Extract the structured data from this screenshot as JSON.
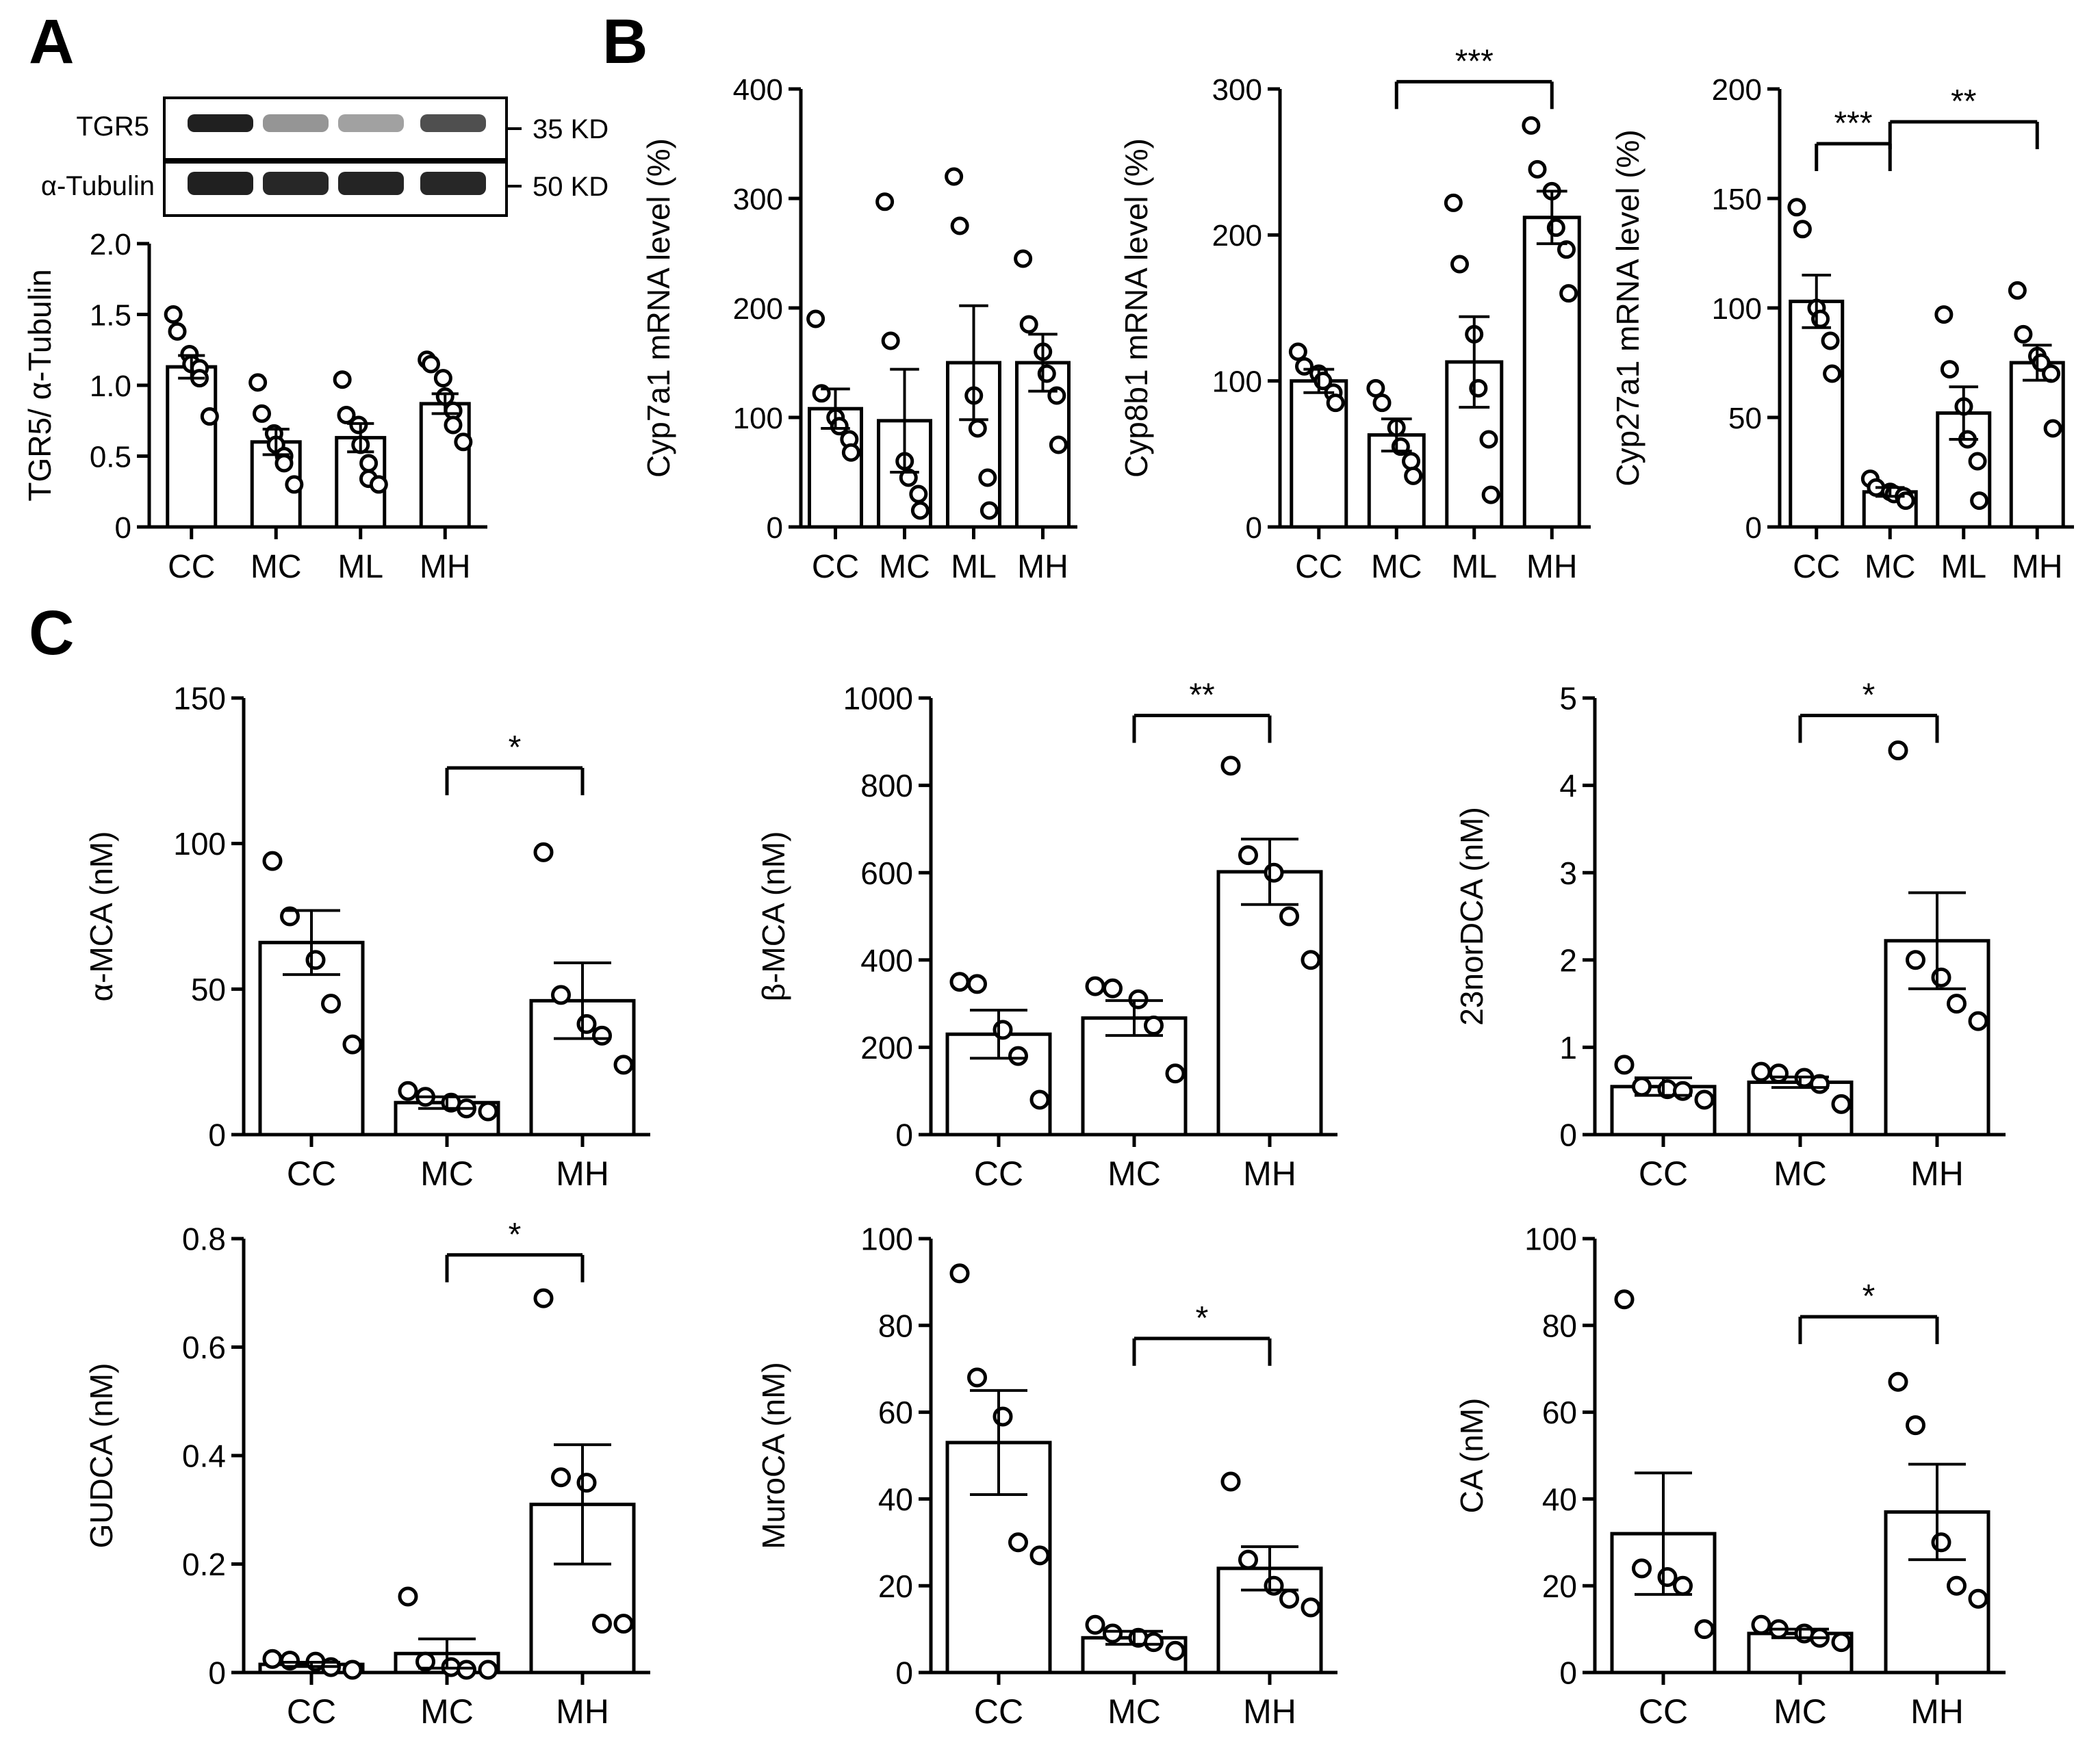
{
  "panel_labels": {
    "a": "A",
    "b": "B",
    "c": "C"
  },
  "western_blot": {
    "rows": [
      {
        "name": "TGR5",
        "size": "35 KD",
        "intensities": [
          0.95,
          0.45,
          0.4,
          0.75
        ]
      },
      {
        "name": "α-Tubulin",
        "size": "50 KD",
        "intensities": [
          0.95,
          0.92,
          0.93,
          0.92
        ]
      }
    ]
  },
  "chart_data": [
    {
      "id": "tgr5",
      "type": "bar",
      "ylabel": "TGR5/ α-Tubulin",
      "ylim": [
        0,
        2.0
      ],
      "yticks": [
        "0",
        "0.5",
        "1.0",
        "1.5",
        "2.0"
      ],
      "categories": [
        "CC",
        "MC",
        "ML",
        "MH"
      ],
      "values": [
        1.13,
        0.6,
        0.63,
        0.87
      ],
      "sem": [
        0.08,
        0.09,
        0.1,
        0.07
      ],
      "points": [
        [
          1.5,
          1.38,
          1.22,
          1.15,
          1.12,
          1.05,
          0.78
        ],
        [
          1.02,
          0.8,
          0.66,
          0.58,
          0.5,
          0.45,
          0.3
        ],
        [
          1.04,
          0.79,
          0.72,
          0.58,
          0.45,
          0.34,
          0.3
        ],
        [
          1.18,
          1.15,
          1.05,
          0.92,
          0.82,
          0.72,
          0.6
        ]
      ],
      "sig": []
    },
    {
      "id": "cyp7a1",
      "type": "bar",
      "ylabel": "Cyp7a1 mRNA level (%)",
      "ylim": [
        0,
        400
      ],
      "yticks": [
        "0",
        "100",
        "200",
        "300",
        "400"
      ],
      "categories": [
        "CC",
        "MC",
        "ML",
        "MH"
      ],
      "values": [
        108,
        97,
        150,
        150
      ],
      "sem": [
        18,
        47,
        52,
        26
      ],
      "points": [
        [
          190,
          122,
          100,
          92,
          80,
          68
        ],
        [
          297,
          170,
          60,
          45,
          30,
          15
        ],
        [
          320,
          275,
          120,
          90,
          45,
          15
        ],
        [
          245,
          185,
          160,
          140,
          120,
          75
        ]
      ],
      "sig": []
    },
    {
      "id": "cyp8b1",
      "type": "bar",
      "ylabel": "Cyp8b1 mRNA level (%)",
      "ylim": [
        0,
        300
      ],
      "yticks": [
        "0",
        "100",
        "200",
        "300"
      ],
      "categories": [
        "CC",
        "MC",
        "ML",
        "MH"
      ],
      "values": [
        100,
        63,
        113,
        212
      ],
      "sem": [
        8,
        11,
        31,
        18
      ],
      "points": [
        [
          120,
          110,
          105,
          100,
          92,
          85
        ],
        [
          95,
          85,
          68,
          55,
          45,
          35
        ],
        [
          222,
          180,
          132,
          95,
          60,
          22
        ],
        [
          275,
          245,
          230,
          205,
          190,
          160
        ]
      ],
      "sig": [
        {
          "from": 1,
          "to": 3,
          "label": "***",
          "y": 305
        }
      ]
    },
    {
      "id": "cyp27a1",
      "type": "bar",
      "ylabel": "Cyp27a1 mRNA level (%)",
      "ylim": [
        0,
        200
      ],
      "yticks": [
        "0",
        "50",
        "100",
        "150",
        "200"
      ],
      "categories": [
        "CC",
        "MC",
        "ML",
        "MH"
      ],
      "values": [
        103,
        16,
        52,
        75
      ],
      "sem": [
        12,
        2,
        12,
        8
      ],
      "points": [
        [
          146,
          136,
          100,
          95,
          85,
          70
        ],
        [
          22,
          18,
          16,
          15,
          14,
          12
        ],
        [
          97,
          72,
          55,
          40,
          30,
          12
        ],
        [
          108,
          88,
          78,
          75,
          70,
          45
        ]
      ],
      "sig": [
        {
          "from": 0,
          "to": 1,
          "label": "***",
          "y": 175,
          "split_right": true
        },
        {
          "from": 1,
          "to": 3,
          "label": "**",
          "y": 185,
          "split_left": true
        }
      ]
    },
    {
      "id": "amca",
      "type": "bar",
      "ylabel": "α-MCA (nM)",
      "ylim": [
        0,
        150
      ],
      "yticks": [
        "0",
        "50",
        "100",
        "150"
      ],
      "categories": [
        "CC",
        "MC",
        "MH"
      ],
      "values": [
        66,
        11,
        46
      ],
      "sem": [
        11,
        2,
        13
      ],
      "points": [
        [
          94,
          75,
          60,
          45,
          31
        ],
        [
          15,
          13,
          11,
          9,
          8
        ],
        [
          97,
          48,
          38,
          34,
          24
        ]
      ],
      "sig": [
        {
          "from": 1,
          "to": 2,
          "label": "*",
          "y": 126
        }
      ]
    },
    {
      "id": "bmca",
      "type": "bar",
      "ylabel": "β-MCA (nM)",
      "ylim": [
        0,
        1000
      ],
      "yticks": [
        "0",
        "200",
        "400",
        "600",
        "800",
        "1000"
      ],
      "categories": [
        "CC",
        "MC",
        "MH"
      ],
      "values": [
        230,
        267,
        602
      ],
      "sem": [
        55,
        40,
        75
      ],
      "points": [
        [
          350,
          345,
          240,
          180,
          80
        ],
        [
          340,
          335,
          310,
          250,
          140
        ],
        [
          845,
          640,
          600,
          500,
          400
        ]
      ],
      "sig": [
        {
          "from": 1,
          "to": 2,
          "label": "**",
          "y": 960
        }
      ]
    },
    {
      "id": "norDCA",
      "type": "bar",
      "ylabel": "23norDCA (nM)",
      "ylim": [
        0,
        5
      ],
      "yticks": [
        "0",
        "1",
        "2",
        "3",
        "4",
        "5"
      ],
      "categories": [
        "CC",
        "MC",
        "MH"
      ],
      "values": [
        0.55,
        0.6,
        2.22
      ],
      "sem": [
        0.1,
        0.06,
        0.55
      ],
      "points": [
        [
          0.8,
          0.55,
          0.52,
          0.5,
          0.4
        ],
        [
          0.72,
          0.7,
          0.65,
          0.58,
          0.35
        ],
        [
          4.4,
          2.0,
          1.8,
          1.5,
          1.3
        ]
      ],
      "sig": [
        {
          "from": 1,
          "to": 2,
          "label": "*",
          "y": 4.8
        }
      ]
    },
    {
      "id": "gudca",
      "type": "bar",
      "ylabel": "GUDCA (nM)",
      "ylim": [
        0,
        0.8
      ],
      "yticks": [
        "0",
        "0.2",
        "0.4",
        "0.6",
        "0.8"
      ],
      "categories": [
        "CC",
        "MC",
        "MH"
      ],
      "values": [
        0.015,
        0.035,
        0.31
      ],
      "sem": [
        0.004,
        0.027,
        0.11
      ],
      "points": [
        [
          0.025,
          0.022,
          0.02,
          0.01,
          0.005
        ],
        [
          0.14,
          0.02,
          0.01,
          0.005,
          0.005
        ],
        [
          0.69,
          0.36,
          0.35,
          0.09,
          0.09
        ]
      ],
      "sig": [
        {
          "from": 1,
          "to": 2,
          "label": "*",
          "y": 0.77
        }
      ]
    },
    {
      "id": "murocal",
      "type": "bar",
      "ylabel": "MuroCA (nM)",
      "ylim": [
        0,
        100
      ],
      "yticks": [
        "0",
        "20",
        "40",
        "60",
        "80",
        "100"
      ],
      "categories": [
        "CC",
        "MC",
        "MH"
      ],
      "values": [
        53,
        8,
        24
      ],
      "sem": [
        12,
        1.5,
        5
      ],
      "points": [
        [
          92,
          68,
          59,
          30,
          27
        ],
        [
          11,
          9,
          8,
          7,
          5
        ],
        [
          44,
          26,
          20,
          17,
          15
        ]
      ],
      "sig": [
        {
          "from": 1,
          "to": 2,
          "label": "*",
          "y": 77
        }
      ]
    },
    {
      "id": "ca",
      "type": "bar",
      "ylabel": "CA (nM)",
      "ylim": [
        0,
        100
      ],
      "yticks": [
        "0",
        "20",
        "40",
        "60",
        "80",
        "100"
      ],
      "categories": [
        "CC",
        "MC",
        "MH"
      ],
      "values": [
        32,
        9,
        37
      ],
      "sem": [
        14,
        1,
        11
      ],
      "points": [
        [
          86,
          24,
          22,
          20,
          10
        ],
        [
          11,
          10,
          9,
          8,
          7
        ],
        [
          67,
          57,
          30,
          20,
          17
        ]
      ],
      "sig": [
        {
          "from": 1,
          "to": 2,
          "label": "*",
          "y": 82
        }
      ]
    }
  ]
}
